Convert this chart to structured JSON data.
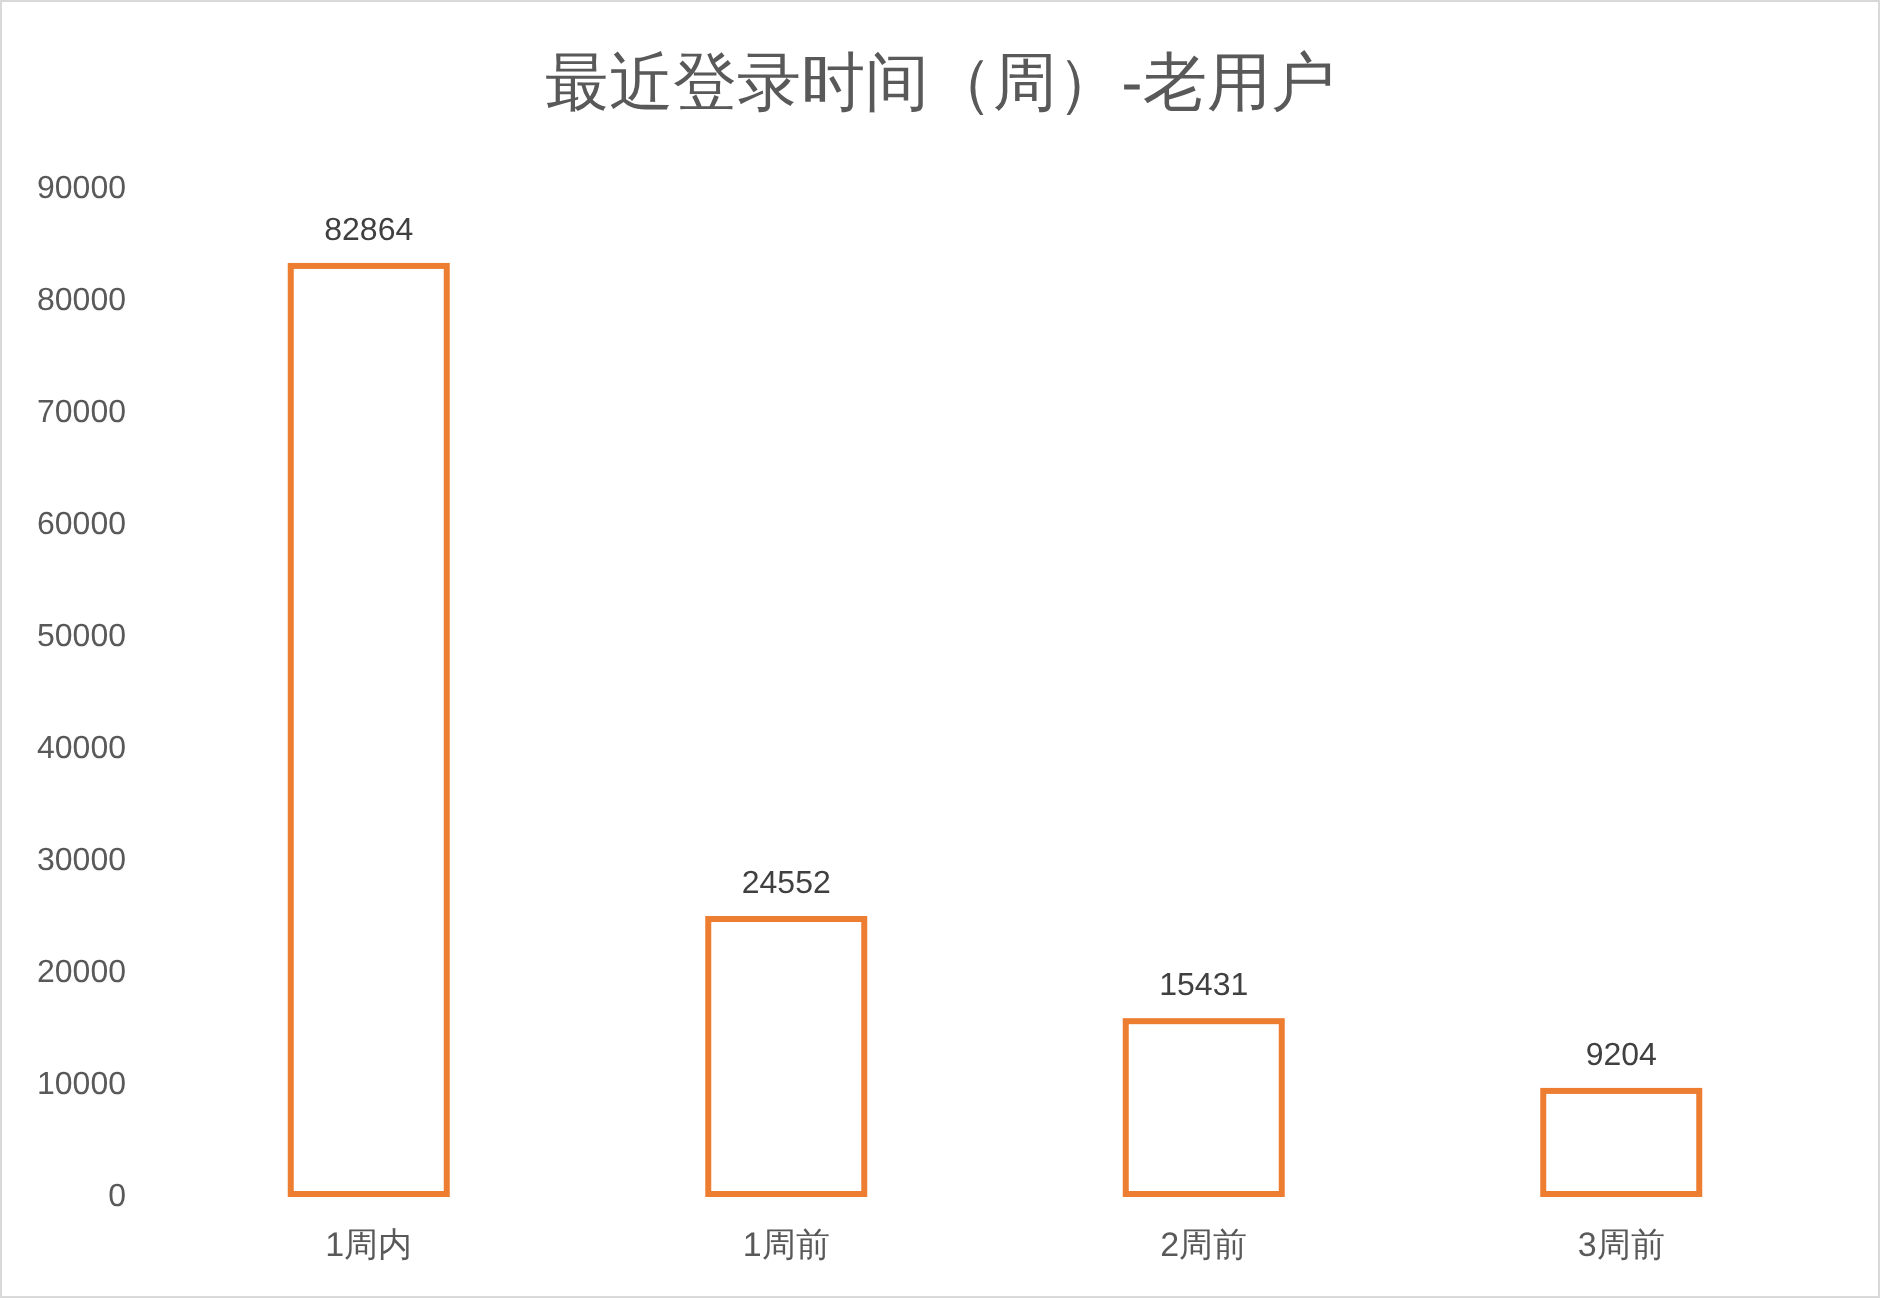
{
  "chart_data": {
    "type": "bar",
    "title": "最近登录时间（周）-老用户",
    "categories": [
      "1周内",
      "1周前",
      "2周前",
      "3周前"
    ],
    "values": [
      82864,
      24552,
      15431,
      9204
    ],
    "color": "#ed7d31",
    "ylim": [
      0,
      90000
    ],
    "yticks": [
      0,
      10000,
      20000,
      30000,
      40000,
      50000,
      60000,
      70000,
      80000,
      90000
    ],
    "data_labels": true
  }
}
